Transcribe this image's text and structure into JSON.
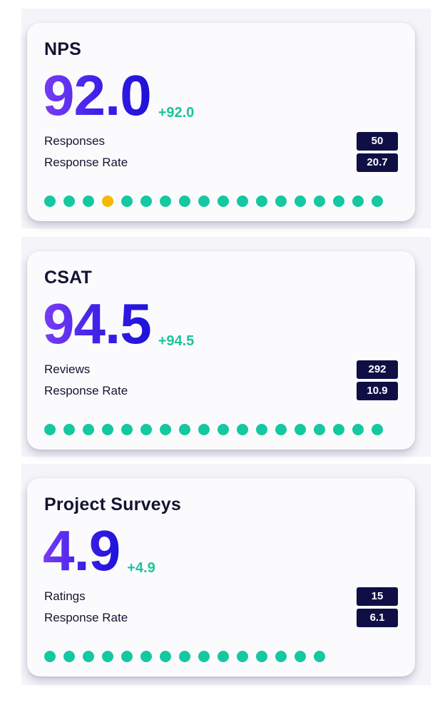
{
  "colors": {
    "accent_green": "#14c8a0",
    "highlight_dot": "#f6b800",
    "badge_bg": "#0f0f46",
    "title_text": "#141432",
    "gradient_start": "#7b3cf5",
    "gradient_end": "#1d12d8"
  },
  "cards": [
    {
      "title": "NPS",
      "value": "92.0",
      "delta": "+92.0",
      "stats": [
        {
          "label": "Responses",
          "value": "50"
        },
        {
          "label": "Response Rate",
          "value": "20.7"
        }
      ],
      "dot_count": 18,
      "highlighted_dot_index": 3
    },
    {
      "title": "CSAT",
      "value": "94.5",
      "delta": "+94.5",
      "stats": [
        {
          "label": "Reviews",
          "value": "292"
        },
        {
          "label": "Response Rate",
          "value": "10.9"
        }
      ],
      "dot_count": 18,
      "highlighted_dot_index": -1
    },
    {
      "title": "Project Surveys",
      "value": "4.9",
      "delta": "+4.9",
      "stats": [
        {
          "label": "Ratings",
          "value": "15"
        },
        {
          "label": "Response Rate",
          "value": "6.1"
        }
      ],
      "dot_count": 15,
      "highlighted_dot_index": -1
    }
  ]
}
